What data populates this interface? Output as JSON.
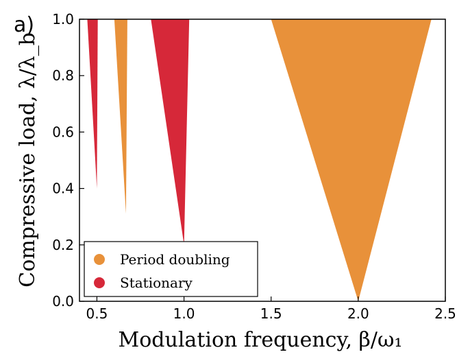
{
  "panel_label": "a)",
  "chart_data": {
    "type": "area",
    "xlabel": "Modulation frequency, β/ω₁",
    "ylabel": "Compressive load, λ/λ_b",
    "xlim": [
      0.4,
      2.5
    ],
    "ylim": [
      0.0,
      1.0
    ],
    "xticks": [
      0.5,
      1.0,
      1.5,
      2.0,
      2.5
    ],
    "xtick_labels": [
      "0.5",
      "1.0",
      "1.5",
      "2.0",
      "2.5"
    ],
    "yticks": [
      0.0,
      0.2,
      0.4,
      0.6,
      0.8,
      1.0
    ],
    "ytick_labels": [
      "0.0",
      "0.2",
      "0.4",
      "0.6",
      "0.8",
      "1.0"
    ],
    "grid": false,
    "legend_position": "bottom-left",
    "colors": {
      "period_doubling": "#E8913A",
      "stationary": "#D62839"
    },
    "series": [
      {
        "name": "Period doubling",
        "regions": [
          {
            "tip": [
              2.0,
              0.0
            ],
            "top_left": 1.5,
            "top_right": 2.42,
            "top_y": 1.0
          },
          {
            "tip": [
              0.667,
              0.31
            ],
            "top_left": 0.6,
            "top_right": 0.675,
            "top_y": 1.0
          }
        ]
      },
      {
        "name": "Stationary",
        "regions": [
          {
            "tip": [
              1.0,
              0.2
            ],
            "top_left": 0.81,
            "top_right": 1.03,
            "top_y": 1.0
          },
          {
            "tip": [
              0.5,
              0.4
            ],
            "top_left": 0.445,
            "top_right": 0.505,
            "top_y": 1.0
          }
        ]
      }
    ]
  }
}
